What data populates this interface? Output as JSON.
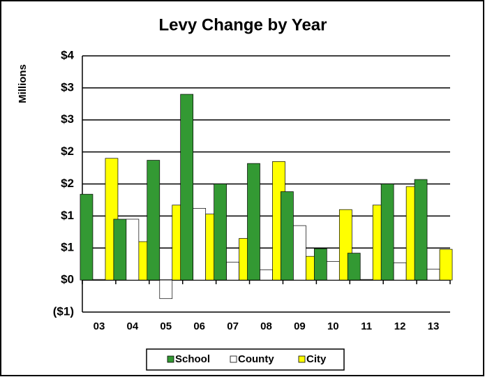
{
  "chart_data": {
    "type": "bar",
    "title": "Levy Change by Year",
    "y_label": "Millions",
    "categories": [
      "03",
      "04",
      "05",
      "06",
      "07",
      "08",
      "09",
      "10",
      "11",
      "12",
      "13"
    ],
    "series": [
      {
        "name": "School",
        "color": "#339933",
        "values": [
          1.34,
          0.95,
          1.87,
          2.9,
          1.5,
          1.82,
          1.38,
          0.49,
          0.42,
          1.5,
          1.57
        ]
      },
      {
        "name": "County",
        "color": "#ffffff",
        "values": [
          0.01,
          0.95,
          -0.29,
          1.12,
          0.28,
          0.16,
          0.85,
          0.29,
          0.01,
          0.27,
          0.17
        ]
      },
      {
        "name": "City",
        "color": "#ffff00",
        "values": [
          1.9,
          0.6,
          1.17,
          1.03,
          0.65,
          1.85,
          0.37,
          1.1,
          1.17,
          1.46,
          0.48
        ]
      }
    ],
    "ylim": [
      -0.5,
      3.5
    ],
    "yticks": [
      {
        "value": -0.5,
        "label": "($1)"
      },
      {
        "value": 0,
        "label": "$0"
      },
      {
        "value": 0.5,
        "label": "$1"
      },
      {
        "value": 1,
        "label": "$1"
      },
      {
        "value": 1.5,
        "label": "$2"
      },
      {
        "value": 2,
        "label": "$2"
      },
      {
        "value": 2.5,
        "label": "$3"
      },
      {
        "value": 3,
        "label": "$3"
      },
      {
        "value": 3.5,
        "label": "$4"
      }
    ],
    "grid": true,
    "legend": "bottom"
  }
}
